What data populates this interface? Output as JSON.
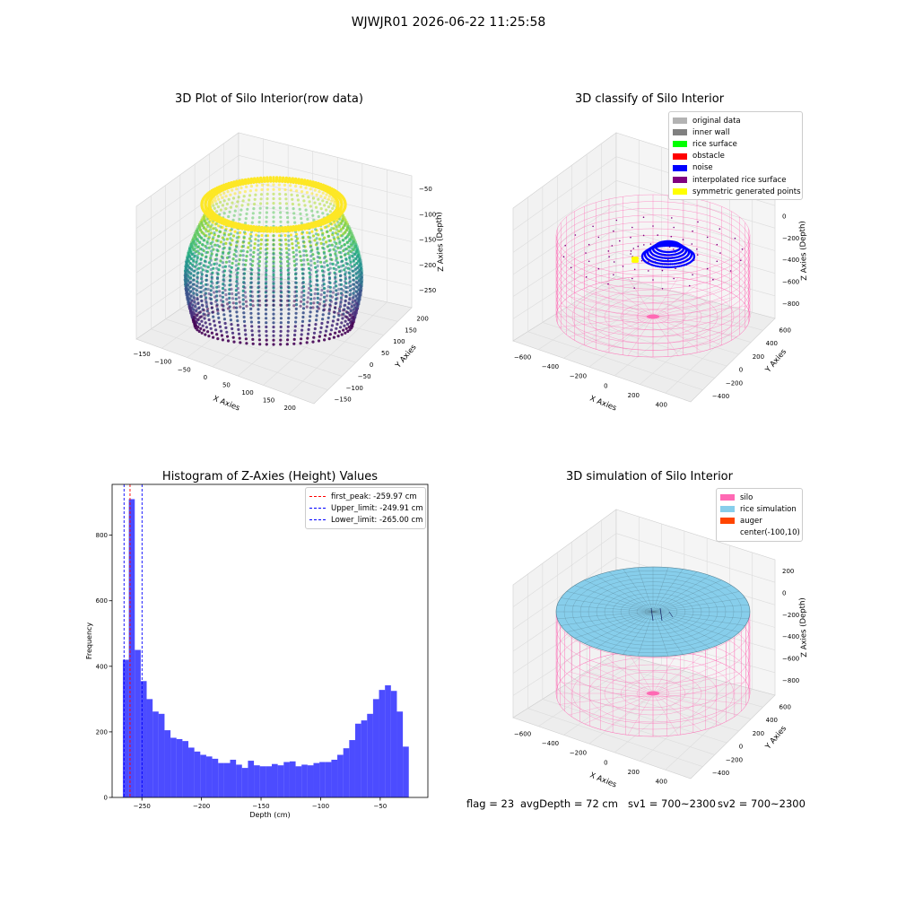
{
  "figure": {
    "suptitle": "WJWJR01 2026-06-22 11:25:58"
  },
  "panels": {
    "raw": {
      "title": "3D Plot of Silo Interior(row data)",
      "xlabel": "X Axies",
      "ylabel": "Y Axies",
      "zlabel": "Z Axies (Depth)",
      "xticks": [
        "−150",
        "−100",
        "−50",
        "0",
        "50",
        "100",
        "150",
        "200"
      ],
      "yticks": [
        "200",
        "150",
        "100",
        "50",
        "0",
        "−50",
        "−100",
        "−150"
      ],
      "zticks": [
        "−50",
        "−100",
        "−150",
        "−200",
        "−250"
      ]
    },
    "classify": {
      "title": "3D classify of Silo Interior",
      "xlabel": "X Axies",
      "ylabel": "Y Axies",
      "zlabel": "Z Axies (Depth)",
      "xticks": [
        "−600",
        "−400",
        "−200",
        "0",
        "200",
        "400"
      ],
      "yticks": [
        "600",
        "400",
        "200",
        "0",
        "−200",
        "−400"
      ],
      "zticks": [
        "200",
        "0",
        "−200",
        "−400",
        "−600",
        "−800"
      ],
      "legend": [
        {
          "label": "original data",
          "color": "#b3b3b3"
        },
        {
          "label": "inner wall",
          "color": "#808080"
        },
        {
          "label": "rice surface",
          "color": "#00ff00"
        },
        {
          "label": "obstacle",
          "color": "#ff0000"
        },
        {
          "label": "noise",
          "color": "#0000ff"
        },
        {
          "label": "interpolated rice surface",
          "color": "#800080"
        },
        {
          "label": "symmetric generated points",
          "color": "#ffff00"
        }
      ]
    },
    "hist": {
      "title": "Histogram of Z-Axies (Height) Values",
      "xlabel": "Depth (cm)",
      "ylabel": "Frequency",
      "legend": [
        {
          "label": "first_peak: -259.97 cm",
          "color": "#ff0000"
        },
        {
          "label": "Upper_limit: -249.91 cm",
          "color": "#0000ff"
        },
        {
          "label": "Lower_limit: -265.00 cm",
          "color": "#0000ff"
        }
      ]
    },
    "sim": {
      "title": "3D simulation of Silo Interior",
      "xlabel": "X Axies",
      "ylabel": "Y Axies",
      "zlabel": "Z Axies (Depth)",
      "xticks": [
        "−600",
        "−400",
        "−200",
        "0",
        "200",
        "400"
      ],
      "yticks": [
        "600",
        "400",
        "200",
        "0",
        "−200",
        "−400"
      ],
      "zticks": [
        "200",
        "0",
        "−200",
        "−400",
        "−600",
        "−800"
      ],
      "legend": [
        {
          "label": "silo",
          "color": "#ff69b4"
        },
        {
          "label": "rice simulation",
          "color": "#87ceeb"
        },
        {
          "label": "auger",
          "color": "#ff4500"
        },
        {
          "label": "center(-100,10)",
          "color": ""
        }
      ]
    }
  },
  "status": {
    "flag": "flag = 23",
    "avg": "avgDepth = 72 cm",
    "sv1": "sv1 = 700~2300",
    "sv2": "sv2 = 700~2300"
  },
  "chart_data": [
    {
      "type": "bar",
      "title": "Histogram of Z-Axies (Height) Values",
      "xlabel": "Depth (cm)",
      "ylabel": "Frequency",
      "xlim": [
        -275,
        -10
      ],
      "ylim": [
        0,
        955
      ],
      "xticks": [
        -250,
        -200,
        -150,
        -100,
        -50
      ],
      "yticks": [
        0,
        200,
        400,
        600,
        800
      ],
      "bin_width": 5,
      "bin_start": -266,
      "values": [
        420,
        910,
        450,
        355,
        300,
        262,
        255,
        205,
        182,
        178,
        172,
        152,
        140,
        130,
        125,
        118,
        105,
        105,
        115,
        100,
        90,
        112,
        98,
        95,
        95,
        102,
        98,
        108,
        110,
        95,
        100,
        98,
        105,
        108,
        108,
        115,
        130,
        150,
        175,
        225,
        235,
        255,
        300,
        328,
        342,
        325,
        262,
        155
      ],
      "vlines": [
        {
          "name": "first_peak: -259.97 cm",
          "x": -259.97,
          "color": "#ff0000"
        },
        {
          "name": "Upper_limit: -249.91 cm",
          "x": -249.91,
          "color": "#0000ff"
        },
        {
          "name": "Lower_limit: -265.00 cm",
          "x": -265.0,
          "color": "#0000ff"
        }
      ],
      "bar_color": "#0000ff",
      "bar_alpha": 0.7
    }
  ]
}
